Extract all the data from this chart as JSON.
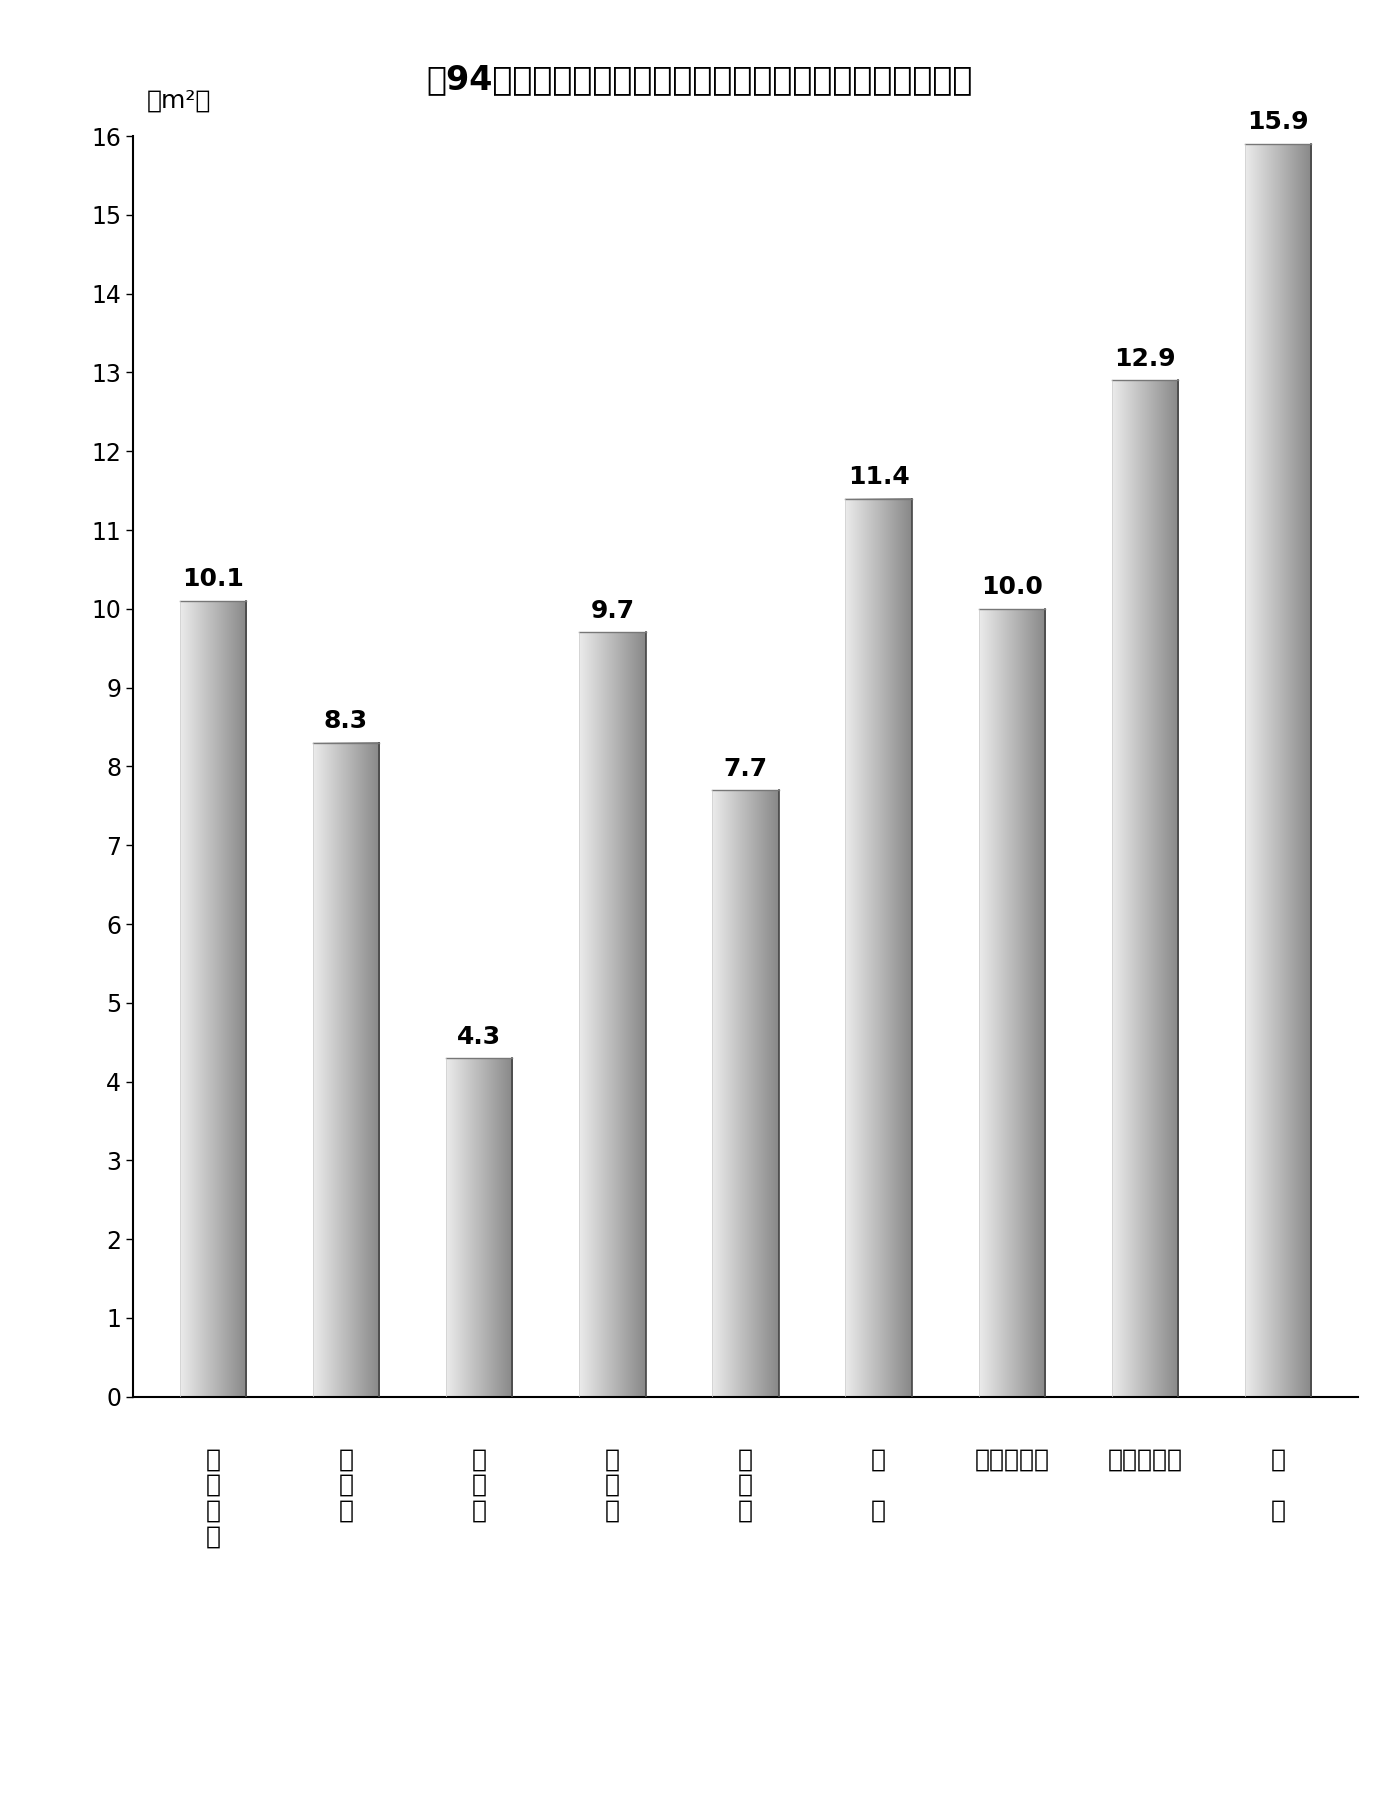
{
  "title": "第94図　都市計画区域内の人口１人当たり都市公園等面積",
  "ylabel": "（m²）",
  "values": [
    10.1,
    8.3,
    4.3,
    9.7,
    7.7,
    11.4,
    10.0,
    12.9,
    15.9
  ],
  "x_labels": [
    "全\n市\n町\n村",
    "大\n都\n市",
    "特\n別\n区",
    "中\n核\n市",
    "特\n例\n市",
    "都\n\n市",
    "（中都市）",
    "（小都市）",
    "町\n\n村"
  ],
  "bar_color_left": "#ebebeb",
  "bar_color_right": "#888888",
  "bar_edge_color": "#555555",
  "ylim": [
    0,
    16
  ],
  "yticks": [
    0,
    1,
    2,
    3,
    4,
    5,
    6,
    7,
    8,
    9,
    10,
    11,
    12,
    13,
    14,
    15,
    16
  ],
  "background_color": "#ffffff",
  "title_fontsize": 24,
  "label_fontsize": 18,
  "tick_fontsize": 17,
  "value_fontsize": 18,
  "bar_width": 0.5
}
